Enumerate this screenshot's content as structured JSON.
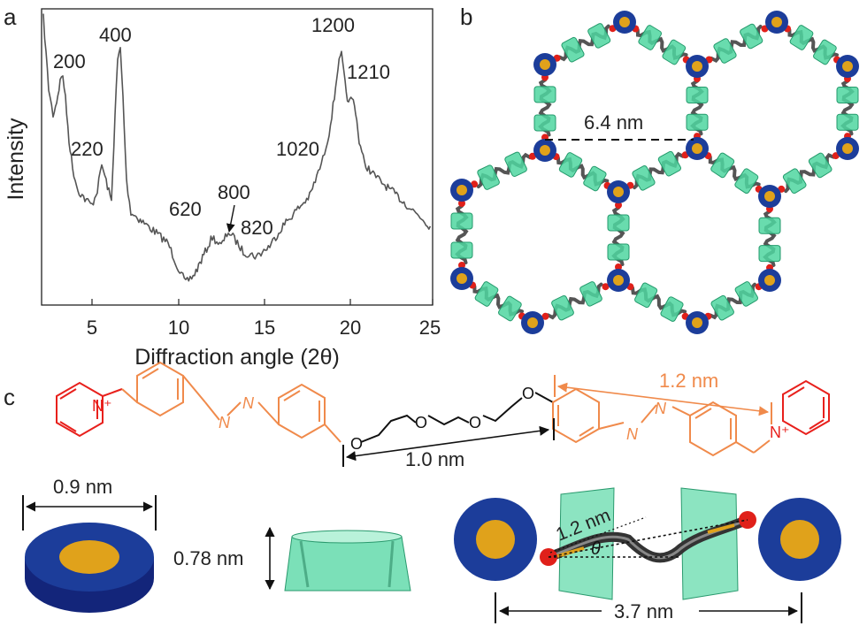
{
  "panels": {
    "a": "a",
    "b": "b",
    "c": "c"
  },
  "xrd": {
    "ylabel": "Intensity",
    "xlabel": "Diffraction angle (2θ)",
    "xticks": [
      "5",
      "10",
      "15",
      "20",
      "25"
    ],
    "peaks": {
      "p200": "200",
      "p220": "220",
      "p400": "400",
      "p620": "620",
      "p800": "800",
      "p820": "820",
      "p1020": "1020",
      "p1200": "1200",
      "p1210": "1210"
    },
    "line_color": "#555555"
  },
  "network": {
    "distance": "6.4 nm",
    "blue": "#1c3d9a",
    "gold": "#e0a21b",
    "green": "#4fd6a0",
    "red": "#e0201a"
  },
  "molecule": {
    "dim_left": "1.0 nm",
    "dim_right": "1.2 nm",
    "n_plus": "N⁺",
    "n_atom": "N",
    "o_atom": "O",
    "pyridinium_color": "#e8201c",
    "azo_color": "#f08a4b"
  },
  "models": {
    "disc_width": "0.9 nm",
    "ring_height": "0.78 nm",
    "arm_length": "1.2 nm",
    "angle": "θ",
    "total_length": "3.7 nm"
  }
}
